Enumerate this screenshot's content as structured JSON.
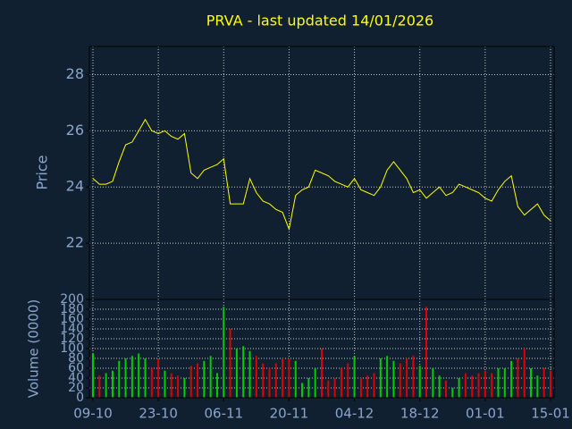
{
  "chart_data": [
    {
      "type": "line",
      "title": "PRVA - last updated 14/01/2026",
      "ylabel": "Price",
      "categories": [
        "09-10",
        null,
        null,
        null,
        null,
        null,
        null,
        null,
        null,
        null,
        "23-10",
        null,
        null,
        null,
        null,
        null,
        null,
        null,
        null,
        null,
        "06-11",
        null,
        null,
        null,
        null,
        null,
        null,
        null,
        null,
        null,
        "20-11",
        null,
        null,
        null,
        null,
        null,
        null,
        null,
        null,
        null,
        "04-12",
        null,
        null,
        null,
        null,
        null,
        null,
        null,
        null,
        null,
        "18-12",
        null,
        null,
        null,
        null,
        null,
        null,
        null,
        null,
        null,
        "01-01",
        null,
        null,
        null,
        null,
        null,
        null,
        null,
        null,
        null,
        "15-01"
      ],
      "values": [
        24.3,
        24.1,
        24.1,
        24.2,
        24.9,
        25.5,
        25.6,
        26.0,
        26.4,
        26.0,
        25.9,
        26.0,
        25.8,
        25.7,
        25.9,
        24.5,
        24.3,
        24.6,
        24.7,
        24.8,
        25.0,
        23.4,
        23.4,
        23.4,
        24.3,
        23.8,
        23.5,
        23.4,
        23.2,
        23.1,
        22.5,
        23.7,
        23.9,
        24.0,
        24.6,
        24.5,
        24.4,
        24.2,
        24.1,
        24.0,
        24.3,
        23.9,
        23.8,
        23.7,
        24.0,
        24.6,
        24.9,
        24.6,
        24.3,
        23.8,
        23.9,
        23.6,
        23.8,
        24.0,
        23.7,
        23.8,
        24.1,
        24.0,
        23.9,
        23.8,
        23.6,
        23.5,
        23.9,
        24.2,
        24.4,
        23.3,
        23.0,
        23.2,
        23.4,
        23.0,
        22.8
      ],
      "color": "#ffff00",
      "ylim": [
        20,
        29
      ],
      "yticks": [
        22,
        24,
        26,
        28
      ],
      "grid": true
    },
    {
      "type": "bar",
      "ylabel": "Volume (0000)",
      "values": [
        90,
        45,
        50,
        55,
        75,
        80,
        85,
        90,
        80,
        60,
        80,
        55,
        50,
        45,
        40,
        65,
        70,
        75,
        85,
        50,
        185,
        140,
        100,
        105,
        95,
        85,
        70,
        60,
        70,
        80,
        80,
        75,
        30,
        40,
        60,
        100,
        35,
        40,
        60,
        70,
        85,
        40,
        45,
        50,
        80,
        85,
        75,
        70,
        80,
        85,
        65,
        185,
        60,
        45,
        35,
        20,
        40,
        50,
        45,
        50,
        55,
        50,
        60,
        60,
        75,
        80,
        100,
        60,
        45,
        60,
        55
      ],
      "up_color": "#00cc00",
      "down_color": "#dd0000",
      "ylim": [
        0,
        200
      ],
      "yticks": [
        0,
        20,
        40,
        60,
        80,
        100,
        120,
        140,
        160,
        180,
        200
      ],
      "grid": true
    }
  ]
}
